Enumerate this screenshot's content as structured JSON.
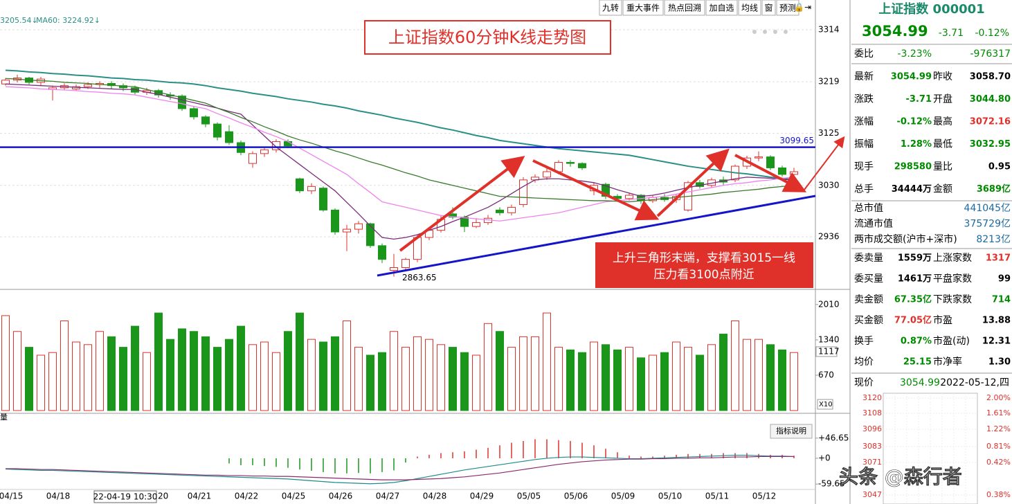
{
  "toolbar": [
    "九转",
    "重大事件",
    "热点回溯",
    "加自选",
    "均线",
    "窗",
    "预测"
  ],
  "ma_legend": [
    "3205.54↓",
    "MA60: 3224.92↓"
  ],
  "chart_data": [
    {
      "type": "candlestick",
      "title": "上证指数60分钟K线走势图",
      "open": [
        3215,
        3222,
        3226,
        3218,
        3205,
        3208,
        3206,
        3210,
        3214,
        3216,
        3212,
        3208,
        3200,
        3203,
        3195,
        3193,
        3170,
        3155,
        3142,
        3128,
        3108,
        3070,
        3088,
        3095,
        3110,
        3042,
        3020,
        3025,
        2985,
        2945,
        2950,
        2960,
        2920,
        2875,
        2880,
        2895,
        2935,
        2948,
        2978,
        2972,
        2955,
        2962,
        2985,
        2980,
        2995,
        3040,
        3045,
        3055,
        3072,
        3070,
        3020,
        3032,
        3010,
        3006,
        3012,
        3002,
        3008,
        3004,
        2985,
        3035,
        3030,
        3040,
        3040,
        3065,
        3080,
        3082,
        3062,
        3050
      ],
      "high": [
        3226,
        3232,
        3228,
        3228,
        3212,
        3216,
        3214,
        3218,
        3220,
        3220,
        3216,
        3212,
        3208,
        3206,
        3200,
        3196,
        3174,
        3158,
        3145,
        3140,
        3112,
        3092,
        3100,
        3114,
        3114,
        3044,
        3034,
        3028,
        2988,
        2958,
        2965,
        2962,
        2924,
        2905,
        2898,
        2940,
        2952,
        2974,
        2990,
        2975,
        2970,
        2976,
        2990,
        2995,
        3045,
        3050,
        3062,
        3076,
        3076,
        3072,
        3035,
        3035,
        3014,
        3016,
        3014,
        3012,
        3014,
        3014,
        3038,
        3040,
        3044,
        3046,
        3068,
        3084,
        3092,
        3085,
        3066,
        3062
      ],
      "low": [
        3212,
        3218,
        3214,
        3212,
        3185,
        3204,
        3202,
        3206,
        3208,
        3206,
        3202,
        3196,
        3195,
        3190,
        3186,
        3166,
        3150,
        3136,
        3112,
        3104,
        3085,
        3062,
        3082,
        3090,
        3098,
        3016,
        3014,
        2982,
        2940,
        2910,
        2942,
        2916,
        2888,
        2863.65,
        2876,
        2890,
        2930,
        2944,
        2968,
        2945,
        2952,
        2958,
        2975,
        2975,
        2990,
        3035,
        3040,
        3050,
        3064,
        3058,
        3012,
        3005,
        3000,
        3002,
        2996,
        2998,
        3000,
        2998,
        2982,
        3024,
        3026,
        3030,
        3036,
        3060,
        3074,
        3058,
        3046,
        3044
      ],
      "close": [
        3222,
        3226,
        3218,
        3224,
        3208,
        3212,
        3210,
        3214,
        3216,
        3212,
        3208,
        3200,
        3203,
        3195,
        3193,
        3170,
        3155,
        3142,
        3118,
        3108,
        3090,
        3088,
        3095,
        3110,
        3102,
        3020,
        3028,
        2985,
        2945,
        2950,
        2960,
        2920,
        2895,
        2880,
        2895,
        2935,
        2948,
        2968,
        2972,
        2955,
        2962,
        2970,
        2980,
        2990,
        3040,
        3045,
        3055,
        3072,
        3070,
        3062,
        3030,
        3010,
        3006,
        3012,
        3002,
        3008,
        3004,
        3010,
        3035,
        3028,
        3040,
        3036,
        3065,
        3080,
        3082,
        3062,
        3050,
        3055
      ],
      "up_color": "#e0302a",
      "down_color": "#1a961a",
      "ylim": [
        2844,
        3343
      ],
      "yticks": [
        2936,
        3030,
        3125,
        3219,
        3314
      ],
      "grid": true,
      "ma_series": [
        {
          "color": "#2a8f86",
          "values": [
            3240,
            3239,
            3237,
            3236,
            3234,
            3233,
            3231,
            3230,
            3228,
            3226,
            3225,
            3223,
            3222,
            3220,
            3218,
            3217,
            3215,
            3212,
            3208,
            3205,
            3202,
            3198,
            3195,
            3192,
            3188,
            3185,
            3182,
            3178,
            3175,
            3171,
            3166,
            3162,
            3158,
            3153,
            3149,
            3145,
            3140,
            3135,
            3131,
            3126,
            3121,
            3117,
            3112,
            3109,
            3106,
            3103,
            3100,
            3097,
            3095,
            3093,
            3091,
            3089,
            3087,
            3085,
            3081,
            3077,
            3073,
            3069,
            3065,
            3062,
            3059,
            3056,
            3053,
            3051,
            3048,
            3045,
            3043,
            3040
          ]
        },
        {
          "color": "#7a2a7a",
          "values": [
            3215,
            3214,
            3213,
            3212,
            3211,
            3210,
            3209,
            3208,
            3207,
            3206,
            3205,
            3205,
            3200,
            3196,
            3191,
            3186,
            3181,
            3176,
            3171,
            3165,
            3160,
            3140,
            3120,
            3100,
            3084,
            3068,
            3052,
            3036,
            3020,
            2999,
            2978,
            2956,
            2935,
            2932,
            2935,
            2940,
            2948,
            2955,
            2964,
            2972,
            2981,
            2990,
            3002,
            3015,
            3028,
            3040,
            3042,
            3042,
            3040,
            3038,
            3035,
            3029,
            3022,
            3016,
            3010,
            3012,
            3016,
            3021,
            3026,
            3030,
            3034,
            3038,
            3042,
            3045,
            3044,
            3043,
            3041,
            3040
          ]
        },
        {
          "color": "#ee82ee",
          "values": [
            3210,
            3209,
            3208,
            3206,
            3205,
            3204,
            3203,
            3201,
            3200,
            3198,
            3197,
            3195,
            3191,
            3187,
            3183,
            3179,
            3174,
            3170,
            3161,
            3153,
            3144,
            3136,
            3127,
            3119,
            3110,
            3098,
            3086,
            3074,
            3062,
            3050,
            3033,
            3017,
            3000,
            2995,
            2990,
            2985,
            2980,
            2975,
            2973,
            2971,
            2969,
            2967,
            2965,
            2968,
            2971,
            2974,
            2977,
            2980,
            2985,
            2990,
            2995,
            3000,
            3002,
            3004,
            3006,
            3008,
            3010,
            3014,
            3018,
            3022,
            3026,
            3030,
            3033,
            3035,
            3038,
            3040,
            3043,
            3045
          ]
        },
        {
          "color": "#3a7a2a",
          "values": [
            3225,
            3224,
            3222,
            3221,
            3220,
            3218,
            3217,
            3216,
            3214,
            3213,
            3211,
            3210,
            3205,
            3200,
            3195,
            3190,
            3185,
            3180,
            3171,
            3163,
            3154,
            3146,
            3137,
            3129,
            3120,
            3113,
            3107,
            3100,
            3093,
            3087,
            3080,
            3073,
            3067,
            3060,
            3053,
            3047,
            3040,
            3035,
            3030,
            3025,
            3020,
            3015,
            3010,
            3009,
            3008,
            3007,
            3006,
            3005,
            3004,
            3003,
            3002,
            3002,
            3001,
            3000,
            3002,
            3004,
            3006,
            3008,
            3010,
            3012,
            3014,
            3017,
            3019,
            3021,
            3023,
            3026,
            3028,
            3030
          ]
        }
      ],
      "resistance": 3099.65,
      "low_marker": 2863.65,
      "annotation": [
        "上升三角形末端，支撑看3015一线",
        "压力看3100点附近"
      ],
      "dates": [
        "04/15",
        "04/18",
        null,
        "20",
        "04/21",
        "04/22",
        "04/25",
        "04/26",
        "04/27",
        "04/28",
        "04/29",
        "05/05",
        "05/06",
        "05/09",
        "05/10",
        "05/11",
        "05/12"
      ],
      "cursor_label": "22-04-19 10:30"
    },
    {
      "type": "bar",
      "label": "量",
      "values": [
        1800,
        1500,
        1200,
        1050,
        1100,
        1700,
        1300,
        1250,
        1500,
        1400,
        1200,
        1600,
        1100,
        1850,
        1350,
        1550,
        1500,
        1400,
        1200,
        1350,
        1600,
        1250,
        1300,
        1100,
        1500,
        1850,
        1350,
        1300,
        1400,
        1700,
        1200,
        1050,
        1100,
        1500,
        1200,
        1400,
        1350,
        1250,
        1200,
        1100,
        1050,
        1650,
        1500,
        1200,
        1400,
        1400,
        1850,
        1200,
        1150,
        1100,
        1300,
        1250,
        1150,
        1200,
        1000,
        1050,
        1100,
        1300,
        1200,
        1050,
        1250,
        1450,
        1700,
        1350,
        1350,
        1250,
        1150,
        1100
      ],
      "ylim": [
        0,
        2140
      ],
      "yticks": [
        670,
        1340,
        2010
      ],
      "ma_level": 1117,
      "unit": "X10"
    },
    {
      "type": "bar",
      "button": "指标说明",
      "values": [
        0,
        0,
        0,
        0,
        0,
        0,
        0,
        0,
        0,
        0,
        0,
        0,
        0,
        0,
        0,
        0,
        0,
        0,
        0,
        -12,
        -16,
        -16,
        -18,
        -20,
        -22,
        -26,
        -29,
        -32,
        -35,
        -35,
        -34,
        -35,
        -32,
        -28,
        -10,
        4,
        8,
        12,
        14,
        16,
        20,
        24,
        30,
        36,
        40,
        44,
        44,
        42,
        40,
        36,
        30,
        22,
        14,
        6,
        4,
        4,
        6,
        8,
        10,
        10,
        10,
        12,
        12,
        12,
        10,
        8,
        8,
        6
      ],
      "lines": [
        {
          "color": "#1c8c8c",
          "values": [
            -25,
            -26,
            -27,
            -28,
            -28,
            -29,
            -30,
            -31,
            -32,
            -33,
            -34,
            -35,
            -36,
            -37,
            -38,
            -39,
            -40,
            -41,
            -42,
            -43,
            -44,
            -45,
            -46,
            -47,
            -48,
            -50,
            -52,
            -54,
            -56,
            -57,
            -58,
            -59,
            -58,
            -56,
            -52,
            -47,
            -42,
            -37,
            -32,
            -27,
            -23,
            -19,
            -15,
            -11,
            -7,
            -3,
            0,
            2,
            3,
            3,
            2,
            1,
            0,
            -1,
            -1,
            0,
            1,
            2,
            3,
            4,
            5,
            6,
            7,
            7,
            6,
            5,
            5,
            4
          ]
        },
        {
          "color": "#8a2a6a",
          "values": [
            -24,
            -24,
            -25,
            -26,
            -26,
            -27,
            -28,
            -29,
            -30,
            -31,
            -32,
            -33,
            -34,
            -35,
            -36,
            -37,
            -38,
            -39,
            -39,
            -40,
            -40,
            -41,
            -41,
            -42,
            -42,
            -43,
            -44,
            -45,
            -46,
            -47,
            -48,
            -49,
            -50,
            -50,
            -50,
            -49,
            -48,
            -47,
            -45,
            -43,
            -40,
            -37,
            -34,
            -30,
            -26,
            -22,
            -18,
            -14,
            -11,
            -8,
            -6,
            -4,
            -3,
            -2,
            -2,
            -1,
            -1,
            0,
            0,
            1,
            1,
            2,
            3,
            3,
            4,
            4,
            4,
            4
          ]
        }
      ],
      "ylim": [
        -93,
        80
      ],
      "yticks": [
        -59.65,
        {
          "value": 0,
          "label": "+0"
        },
        {
          "value": 46.65,
          "label": "+46.65"
        }
      ]
    }
  ],
  "quote": {
    "name": "上证指数 000001",
    "price": "3054.99",
    "change": "-3.71",
    "pct": "-0.12%",
    "weibi": [
      "委比",
      "-3.23%",
      "-976317"
    ],
    "rows": [
      [
        [
          "最新",
          "3054.99",
          "#008a00"
        ],
        [
          "昨收",
          "3058.70",
          "#000000"
        ]
      ],
      [
        [
          "涨跌",
          "-3.71",
          "#008a00"
        ],
        [
          "开盘",
          "3044.80",
          "#008a00"
        ]
      ],
      [
        [
          "涨幅",
          "-0.12%",
          "#008a00"
        ],
        [
          "最高",
          "3072.16",
          "#e0302a"
        ]
      ],
      [
        [
          "振幅",
          "1.28%",
          "#008a00"
        ],
        [
          "最低",
          "3032.95",
          "#008a00"
        ]
      ],
      [
        [
          "现手",
          "298580",
          "#008a00"
        ],
        [
          "量比",
          "0.95",
          "#000000"
        ]
      ],
      [
        [
          "总手",
          "34444万",
          "#000000"
        ],
        [
          "金额",
          "3689亿",
          "#008a00"
        ]
      ]
    ],
    "market": [
      [
        "总市值",
        "441045亿"
      ],
      [
        "流通市值",
        "375729亿"
      ],
      [
        "两市成交额(沪市+深市)",
        "8213亿"
      ]
    ],
    "stats": [
      [
        [
          "委卖量",
          "1559万",
          "#000000"
        ],
        [
          "上涨家数",
          "1317",
          "#e0302a"
        ]
      ],
      [
        [
          "委买量",
          "1461万",
          "#000000"
        ],
        [
          "平盘家数",
          "99",
          "#000000"
        ]
      ],
      [
        [
          "卖金额",
          "67.35亿",
          "#008a00"
        ],
        [
          "下跌家数",
          "714",
          "#008a00"
        ]
      ],
      [
        [
          "买金额",
          "77.05亿",
          "#e0302a"
        ],
        [
          "市盈",
          "13.88",
          "#000000"
        ]
      ],
      [
        [
          "换手",
          "0.87%",
          "#008a00"
        ],
        [
          "市盈(动)",
          "12.31",
          "#000000"
        ]
      ],
      [
        [
          "均价",
          "25.15",
          "#008a00"
        ],
        [
          "市净率",
          "1.30",
          "#000000"
        ]
      ]
    ],
    "mini_header": [
      "现价",
      "3054.99",
      "2022-05-12,四"
    ],
    "mini_ticks": [
      [
        "3120",
        "2.00%"
      ],
      [
        "3108",
        "1.61%"
      ],
      [
        "3096",
        "1.22%"
      ],
      [
        "3083",
        "0.81%"
      ],
      [
        "3071",
        "0.42%"
      ],
      [
        "3047",
        "0.38%"
      ]
    ]
  },
  "watermark": "头条 @森行者"
}
